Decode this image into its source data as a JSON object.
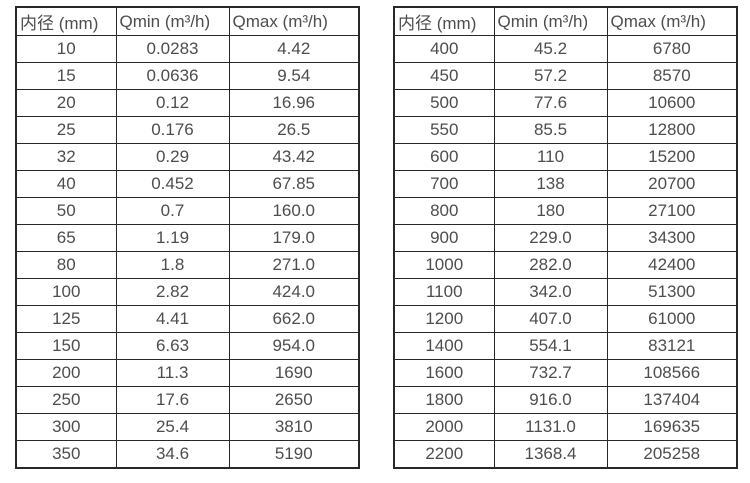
{
  "tables": [
    {
      "name": "small-diameter-flow-table",
      "headers": [
        "内径 (mm)",
        "Qmin (m³/h)",
        "Qmax (m³/h)"
      ],
      "rows": [
        [
          "10",
          "0.0283",
          "4.42"
        ],
        [
          "15",
          "0.0636",
          "9.54"
        ],
        [
          "20",
          "0.12",
          "16.96"
        ],
        [
          "25",
          "0.176",
          "26.5"
        ],
        [
          "32",
          "0.29",
          "43.42"
        ],
        [
          "40",
          "0.452",
          "67.85"
        ],
        [
          "50",
          "0.7",
          "160.0"
        ],
        [
          "65",
          "1.19",
          "179.0"
        ],
        [
          "80",
          "1.8",
          "271.0"
        ],
        [
          "100",
          "2.82",
          "424.0"
        ],
        [
          "125",
          "4.41",
          "662.0"
        ],
        [
          "150",
          "6.63",
          "954.0"
        ],
        [
          "200",
          "11.3",
          "1690"
        ],
        [
          "250",
          "17.6",
          "2650"
        ],
        [
          "300",
          "25.4",
          "3810"
        ],
        [
          "350",
          "34.6",
          "5190"
        ]
      ]
    },
    {
      "name": "large-diameter-flow-table",
      "headers": [
        "内径 (mm)",
        "Qmin (m³/h)",
        "Qmax (m³/h)"
      ],
      "rows": [
        [
          "400",
          "45.2",
          "6780"
        ],
        [
          "450",
          "57.2",
          "8570"
        ],
        [
          "500",
          "77.6",
          "10600"
        ],
        [
          "550",
          "85.5",
          "12800"
        ],
        [
          "600",
          "110",
          "15200"
        ],
        [
          "700",
          "138",
          "20700"
        ],
        [
          "800",
          "180",
          "27100"
        ],
        [
          "900",
          "229.0",
          "34300"
        ],
        [
          "1000",
          "282.0",
          "42400"
        ],
        [
          "1100",
          "342.0",
          "51300"
        ],
        [
          "1200",
          "407.0",
          "61000"
        ],
        [
          "1400",
          "554.1",
          "83121"
        ],
        [
          "1600",
          "732.7",
          "108566"
        ],
        [
          "1800",
          "916.0",
          "137404"
        ],
        [
          "2000",
          "1131.0",
          "169635"
        ],
        [
          "2200",
          "1368.4",
          "205258"
        ]
      ]
    }
  ],
  "colors": {
    "border": "#282828",
    "text": "#4d4d4d",
    "background": "#ffffff"
  }
}
